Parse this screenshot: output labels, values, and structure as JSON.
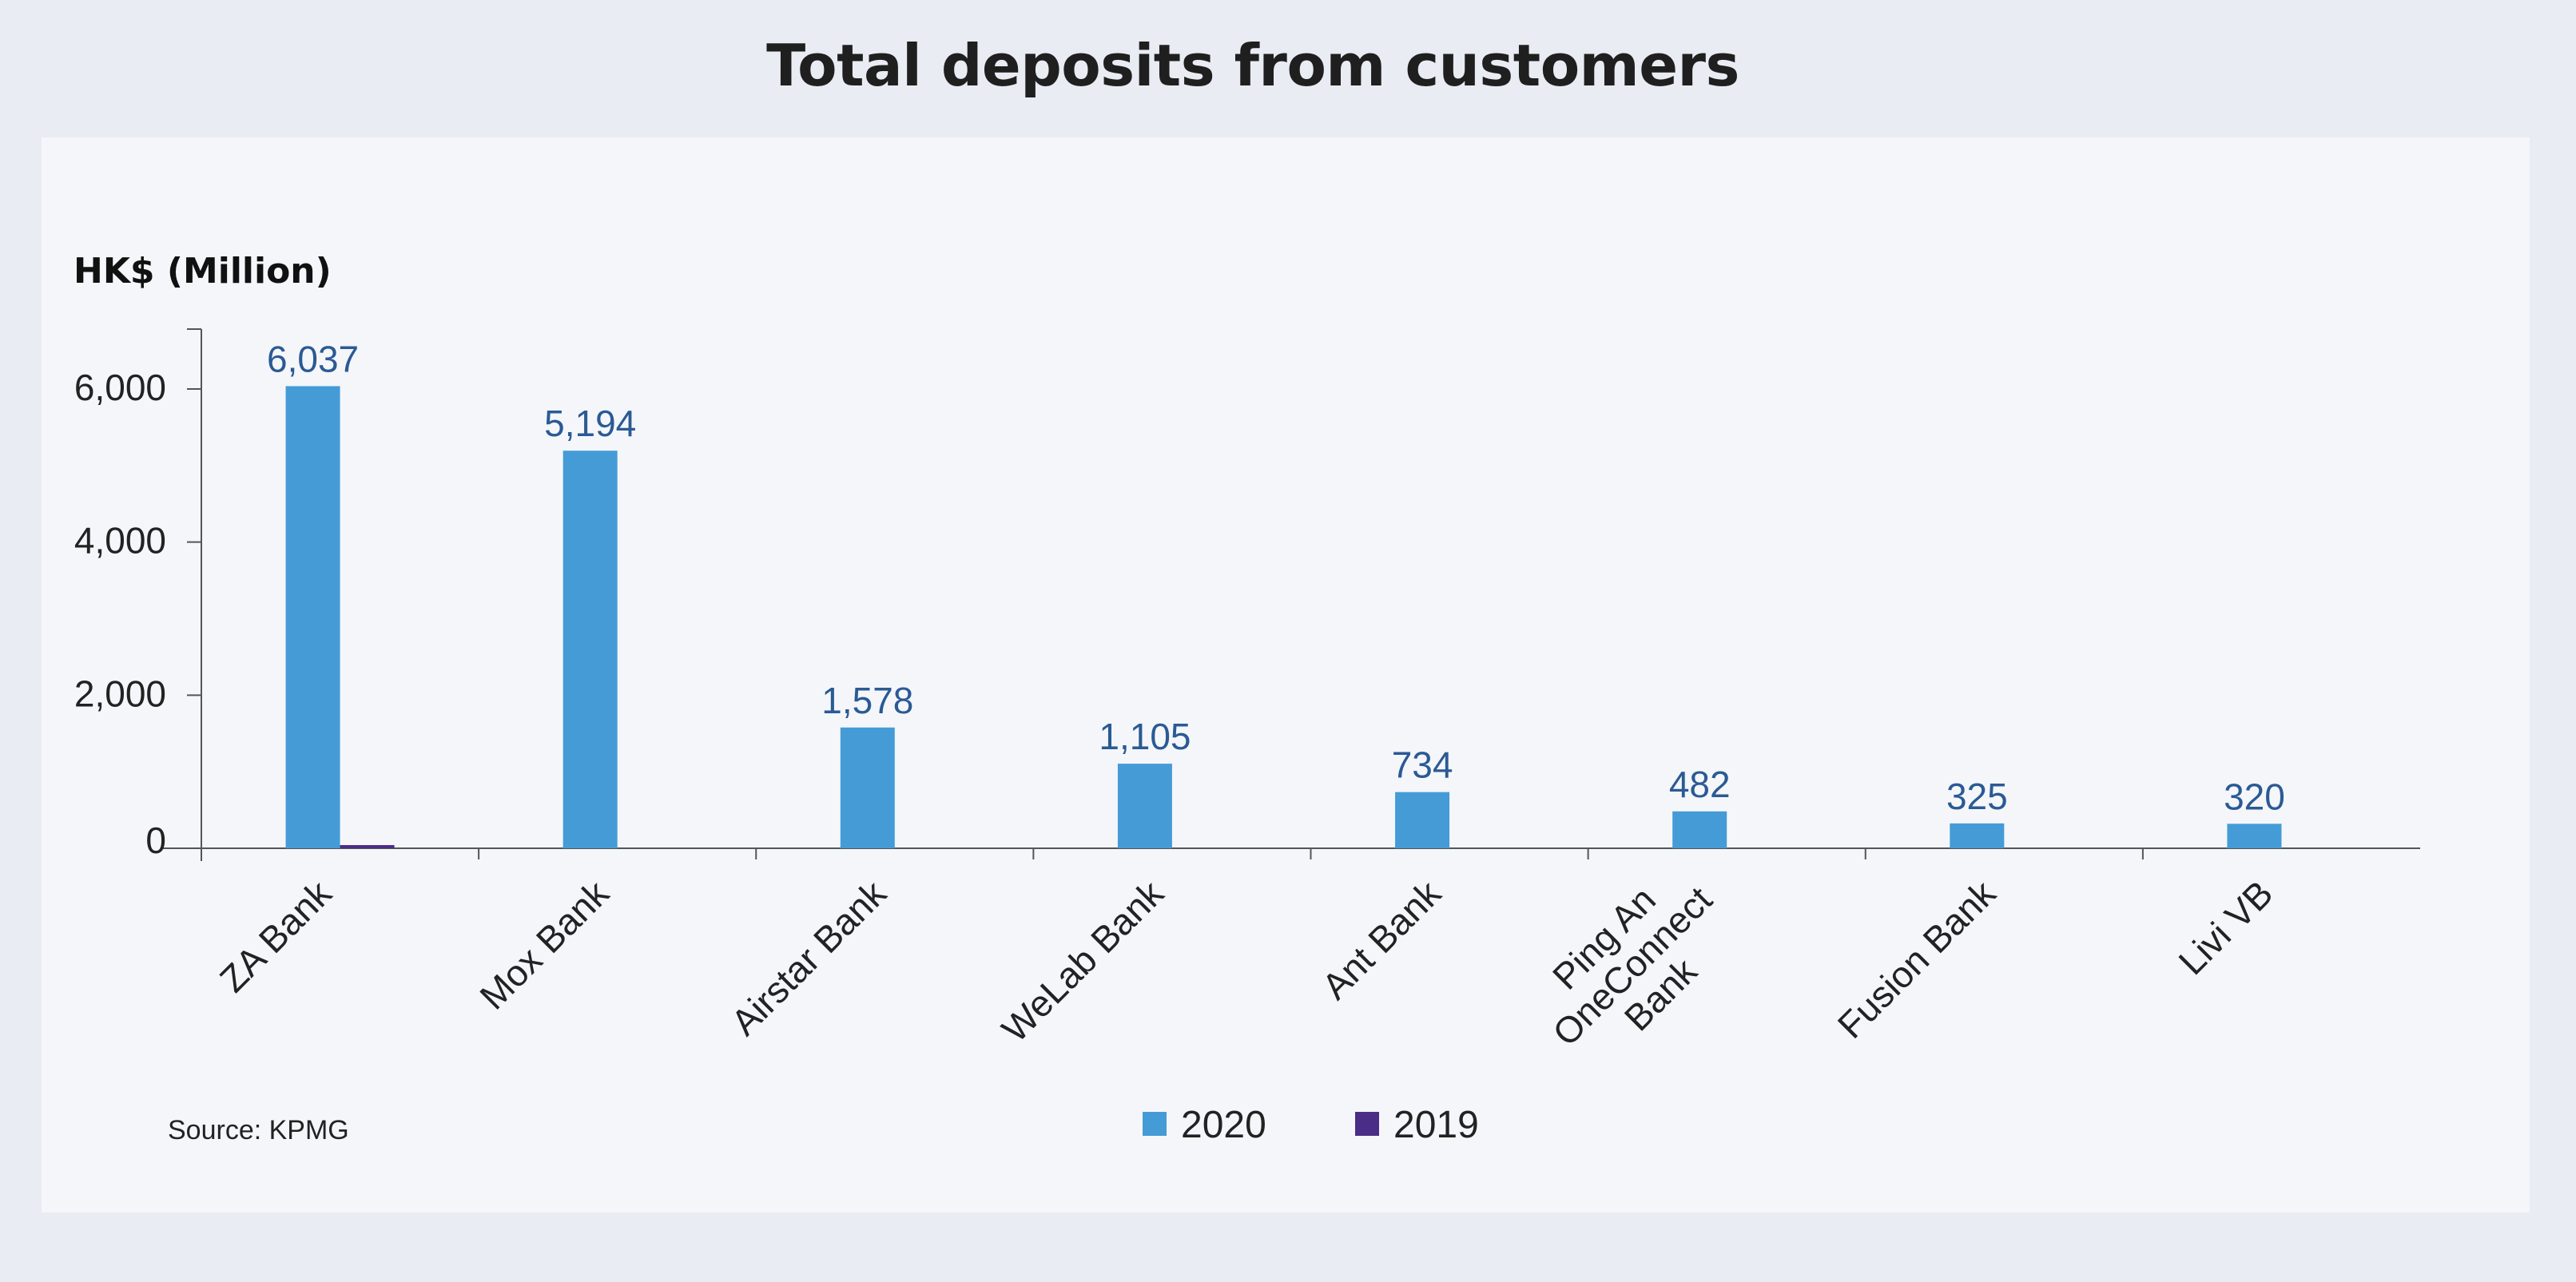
{
  "title": "Total deposits from customers",
  "chart_data": {
    "type": "bar",
    "title": "Total deposits from customers",
    "ylabel": "HK$ (Million)",
    "xlabel": "",
    "ylim": [
      0,
      7000
    ],
    "yticks": [
      0,
      2000,
      4000,
      6000
    ],
    "ytick_labels": [
      "0",
      "2,000",
      "4,000",
      "6,000"
    ],
    "categories": [
      [
        "ZA Bank"
      ],
      [
        "Mox Bank"
      ],
      [
        "Airstar Bank"
      ],
      [
        "WeLab Bank"
      ],
      [
        "Ant Bank"
      ],
      [
        "Ping An",
        "OneConnect",
        "Bank"
      ],
      [
        "Fusion Bank"
      ],
      [
        "Livi VB"
      ]
    ],
    "series": [
      {
        "name": "2020",
        "color": "#459bd6",
        "values": [
          6037,
          5194,
          1578,
          1105,
          734,
          482,
          325,
          320
        ],
        "labels": [
          "6,037",
          "5,194",
          "1,578",
          "1,105",
          "734",
          "482",
          "325",
          "320"
        ]
      },
      {
        "name": "2019",
        "color": "#4a2d86",
        "values": [
          40,
          0,
          0,
          0,
          0,
          0,
          0,
          0
        ],
        "labels": [
          "",
          "",
          "",
          "",
          "",
          "",
          "",
          ""
        ]
      }
    ],
    "legend_position": "bottom-center",
    "grid": false,
    "source": "Source: KPMG"
  }
}
